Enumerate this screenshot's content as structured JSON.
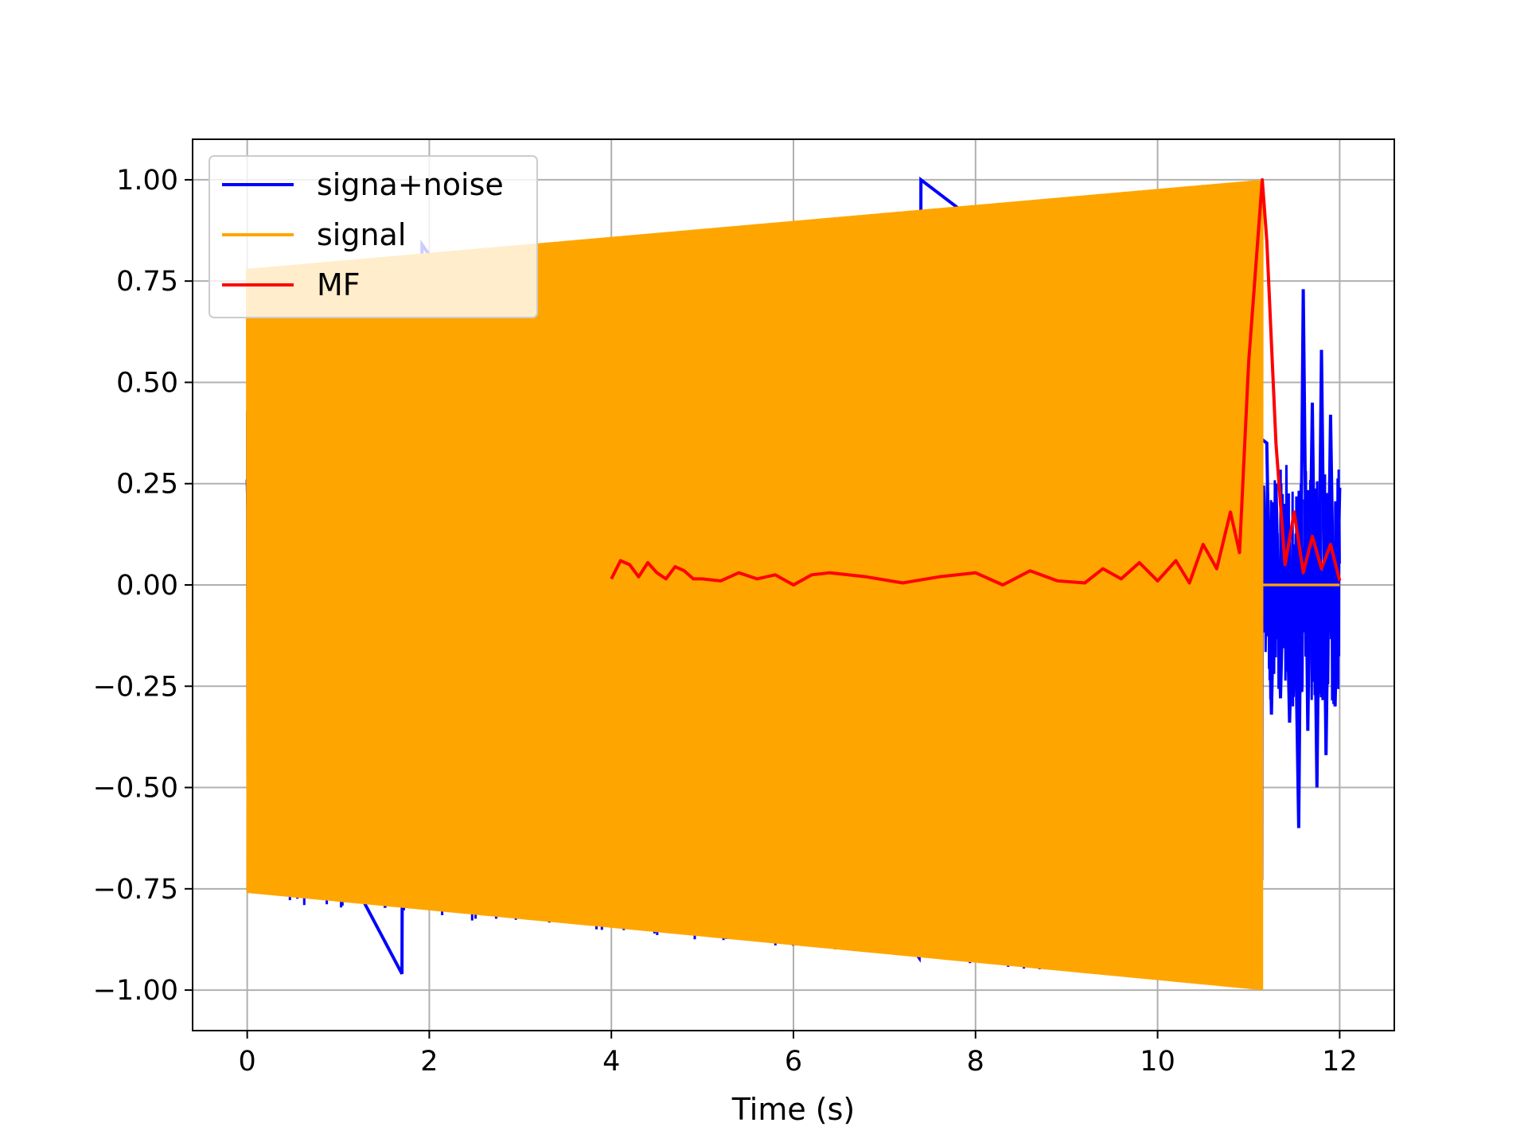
{
  "chart_data": {
    "type": "line",
    "title": "",
    "xlabel": "Time (s)",
    "ylabel": "",
    "xlim": [
      -0.6,
      12.6
    ],
    "ylim": [
      -1.1,
      1.1
    ],
    "xticks": [
      0,
      2,
      4,
      6,
      8,
      10,
      12
    ],
    "xtick_labels": [
      "0",
      "2",
      "4",
      "6",
      "8",
      "10",
      "12"
    ],
    "yticks": [
      1.0,
      0.75,
      0.5,
      0.25,
      0.0,
      -0.25,
      -0.5,
      -0.75,
      -1.0
    ],
    "ytick_labels": [
      "1.00",
      "0.75",
      "0.50",
      "0.25",
      "0.00",
      "−0.25",
      "−0.50",
      "−0.75",
      "−1.00"
    ],
    "grid": true,
    "legend_position": "top-left",
    "series": [
      {
        "name": "signa+noise",
        "color": "#0000ff",
        "description_free": true,
        "x": [
          0.0,
          0.05,
          1.7,
          1.72,
          1.9,
          1.92,
          7.38,
          7.4,
          11.2,
          11.25,
          11.3,
          11.35,
          11.4,
          11.45,
          11.5,
          11.55,
          11.6,
          11.65,
          11.7,
          11.75,
          11.8,
          11.85,
          11.9,
          11.95,
          12.0
        ],
        "y": [
          0.26,
          -0.26,
          -0.96,
          0.6,
          -0.78,
          0.84,
          -0.92,
          1.0,
          0.35,
          -0.32,
          0.25,
          -0.28,
          0.2,
          -0.34,
          0.1,
          -0.6,
          0.73,
          -0.36,
          0.45,
          -0.5,
          0.58,
          -0.42,
          0.42,
          -0.3,
          0.24
        ]
      },
      {
        "name": "signal",
        "color": "#ffa500",
        "envelope_x": [
          0.0,
          11.15
        ],
        "envelope_upper": [
          0.78,
          1.0
        ],
        "envelope_lower": [
          -0.76,
          -1.0
        ],
        "end_x": 11.15,
        "after_end_value": 0.0,
        "after_end_x": [
          11.15,
          12.0
        ]
      },
      {
        "name": "MF",
        "color": "#ff0000",
        "x": [
          4.0,
          4.1,
          4.2,
          4.3,
          4.4,
          4.5,
          4.6,
          4.7,
          4.8,
          4.9,
          5.0,
          5.2,
          5.4,
          5.6,
          5.8,
          6.0,
          6.2,
          6.4,
          6.8,
          7.2,
          7.6,
          8.0,
          8.3,
          8.6,
          8.9,
          9.2,
          9.4,
          9.6,
          9.8,
          10.0,
          10.2,
          10.35,
          10.5,
          10.65,
          10.8,
          10.9,
          11.0,
          11.1,
          11.15,
          11.2,
          11.3,
          11.4,
          11.5,
          11.6,
          11.7,
          11.8,
          11.9,
          12.0
        ],
        "y": [
          0.015,
          0.06,
          0.05,
          0.02,
          0.055,
          0.03,
          0.015,
          0.045,
          0.035,
          0.015,
          0.015,
          0.01,
          0.03,
          0.015,
          0.025,
          0.0,
          0.025,
          0.03,
          0.02,
          0.005,
          0.02,
          0.03,
          0.0,
          0.035,
          0.01,
          0.005,
          0.04,
          0.015,
          0.055,
          0.01,
          0.06,
          0.005,
          0.1,
          0.04,
          0.18,
          0.08,
          0.55,
          0.85,
          1.0,
          0.85,
          0.35,
          0.05,
          0.18,
          0.03,
          0.12,
          0.04,
          0.1,
          0.01
        ]
      }
    ]
  }
}
